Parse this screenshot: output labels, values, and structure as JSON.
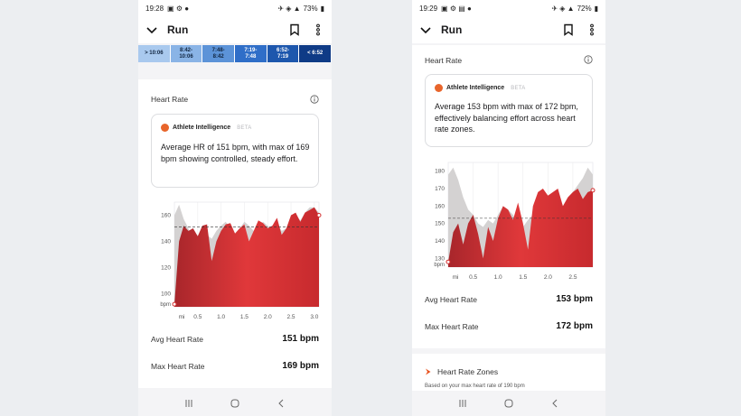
{
  "left": {
    "status": {
      "time": "19:28",
      "battery": "73%"
    },
    "title": "Run",
    "pace_zones": [
      {
        "label": "> 10:06",
        "color": "#a9c9ee"
      },
      {
        "label": "8:42-\n10:06",
        "color": "#8ab4e6"
      },
      {
        "label": "7:48-\n8:42",
        "color": "#5c93d8"
      },
      {
        "label": "7:19-\n7:48",
        "color": "#2f6ec8"
      },
      {
        "label": "6:52-\n7:19",
        "color": "#1d57ad"
      },
      {
        "label": "< 6:52",
        "color": "#0f3b86"
      }
    ],
    "section_title": "Heart Rate",
    "ai": {
      "name": "Athlete Intelligence",
      "beta": "BETA",
      "text": "Average HR of 151 bpm, with max of 169 bpm showing controlled, steady effort."
    },
    "chart_data": {
      "type": "area",
      "ylabel": "bpm",
      "y_ticks": [
        "100",
        "120",
        "140",
        "160"
      ],
      "x_ticks": [
        "mi",
        "0.5",
        "1.0",
        "1.5",
        "2.0",
        "2.5",
        "3.0"
      ],
      "ylim": [
        90,
        170
      ],
      "xlim": [
        0,
        3.1
      ],
      "average": 151,
      "x": [
        0,
        0.1,
        0.2,
        0.3,
        0.4,
        0.5,
        0.6,
        0.7,
        0.8,
        0.9,
        1.0,
        1.1,
        1.2,
        1.3,
        1.4,
        1.5,
        1.6,
        1.7,
        1.8,
        1.9,
        2.0,
        2.1,
        2.2,
        2.3,
        2.4,
        2.5,
        2.6,
        2.7,
        2.8,
        2.9,
        3.0,
        3.1
      ],
      "values": [
        92,
        140,
        152,
        148,
        150,
        144,
        152,
        153,
        125,
        140,
        148,
        153,
        154,
        146,
        150,
        153,
        140,
        148,
        156,
        154,
        150,
        152,
        158,
        145,
        150,
        160,
        162,
        155,
        162,
        164,
        166,
        160
      ],
      "elevation": [
        160,
        168,
        157,
        150,
        140,
        135,
        137,
        145,
        142,
        148,
        152,
        155,
        150,
        146,
        150,
        155,
        152,
        148,
        150,
        155,
        152,
        150,
        154,
        148,
        150,
        158,
        160,
        156,
        162,
        166,
        166,
        162
      ]
    },
    "avg_label": "Avg Heart Rate",
    "avg_value": "151 bpm",
    "max_label": "Max Heart Rate",
    "max_value": "169 bpm"
  },
  "right": {
    "status": {
      "time": "19:29",
      "battery": "72%"
    },
    "title": "Run",
    "section_title": "Heart Rate",
    "ai": {
      "name": "Athlete Intelligence",
      "beta": "BETA",
      "text": "Average 153 bpm with max of 172 bpm, effectively balancing effort across heart rate zones."
    },
    "chart_data": {
      "type": "area",
      "ylabel": "bpm",
      "y_ticks": [
        "130",
        "140",
        "150",
        "160",
        "170",
        "180"
      ],
      "x_ticks": [
        "mi",
        "0.5",
        "1.0",
        "1.5",
        "2.0",
        "2.5"
      ],
      "ylim": [
        125,
        185
      ],
      "xlim": [
        0,
        2.9
      ],
      "average": 153,
      "x": [
        0,
        0.1,
        0.2,
        0.3,
        0.4,
        0.5,
        0.6,
        0.7,
        0.8,
        0.9,
        1.0,
        1.1,
        1.2,
        1.3,
        1.4,
        1.5,
        1.6,
        1.7,
        1.8,
        1.9,
        2.0,
        2.1,
        2.2,
        2.3,
        2.4,
        2.5,
        2.6,
        2.7,
        2.8,
        2.9
      ],
      "values": [
        128,
        145,
        150,
        138,
        150,
        155,
        144,
        130,
        148,
        140,
        153,
        160,
        158,
        152,
        162,
        150,
        135,
        160,
        168,
        170,
        166,
        168,
        170,
        160,
        165,
        168,
        170,
        164,
        168,
        169
      ],
      "elevation": [
        178,
        182,
        175,
        165,
        158,
        155,
        150,
        148,
        152,
        150,
        155,
        160,
        158,
        155,
        150,
        148,
        152,
        155,
        158,
        160,
        158,
        162,
        165,
        160,
        162,
        168,
        172,
        176,
        182,
        178
      ]
    },
    "avg_label": "Avg Heart Rate",
    "avg_value": "153 bpm",
    "max_label": "Max Heart Rate",
    "max_value": "172 bpm",
    "zones_title": "Heart Rate Zones",
    "zones_sub": "Based on your max heart rate of 190 bpm"
  }
}
